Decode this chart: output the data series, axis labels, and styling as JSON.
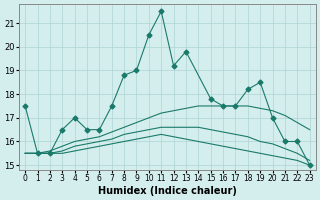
{
  "xlabel": "Humidex (Indice chaleur)",
  "ylabel": "",
  "x_values": [
    0,
    1,
    2,
    3,
    4,
    5,
    6,
    7,
    8,
    9,
    10,
    11,
    12,
    13,
    14,
    15,
    16,
    17,
    18,
    19,
    20,
    21,
    22,
    23
  ],
  "line1": [
    17.5,
    15.5,
    15.5,
    16.5,
    17.0,
    16.5,
    16.5,
    17.5,
    18.8,
    19.0,
    20.5,
    21.5,
    19.2,
    19.8,
    null,
    17.8,
    17.5,
    17.5,
    18.2,
    18.5,
    17.0,
    16.0,
    16.0,
    15.0
  ],
  "line2": [
    null,
    null,
    null,
    16.3,
    null,
    null,
    16.5,
    null,
    null,
    null,
    null,
    null,
    null,
    null,
    null,
    15.5,
    null,
    null,
    null,
    null,
    null,
    null,
    null,
    null
  ],
  "line3_min": [
    15.5,
    15.5,
    15.5,
    15.5,
    15.6,
    15.7,
    15.8,
    15.9,
    16.0,
    16.1,
    16.2,
    16.3,
    16.2,
    16.1,
    16.0,
    15.9,
    15.8,
    15.7,
    15.6,
    15.5,
    15.4,
    15.3,
    15.2,
    15.0
  ],
  "line4_max": [
    15.5,
    15.5,
    15.6,
    15.8,
    16.0,
    16.1,
    16.2,
    16.4,
    16.6,
    16.8,
    17.0,
    17.2,
    17.3,
    17.4,
    17.5,
    17.5,
    17.5,
    17.5,
    17.5,
    17.4,
    17.3,
    17.1,
    16.8,
    16.5
  ],
  "line5_avg": [
    15.5,
    15.5,
    15.5,
    15.6,
    15.8,
    15.9,
    16.0,
    16.1,
    16.3,
    16.4,
    16.5,
    16.6,
    16.6,
    16.6,
    16.6,
    16.5,
    16.4,
    16.3,
    16.2,
    16.0,
    15.9,
    15.7,
    15.5,
    15.2
  ],
  "bg_color": "#d4eeee",
  "grid_color": "#b0d4d4",
  "line_color": "#1a7a6a",
  "ylim": [
    14.8,
    21.8
  ],
  "yticks": [
    15,
    16,
    17,
    18,
    19,
    20,
    21
  ]
}
